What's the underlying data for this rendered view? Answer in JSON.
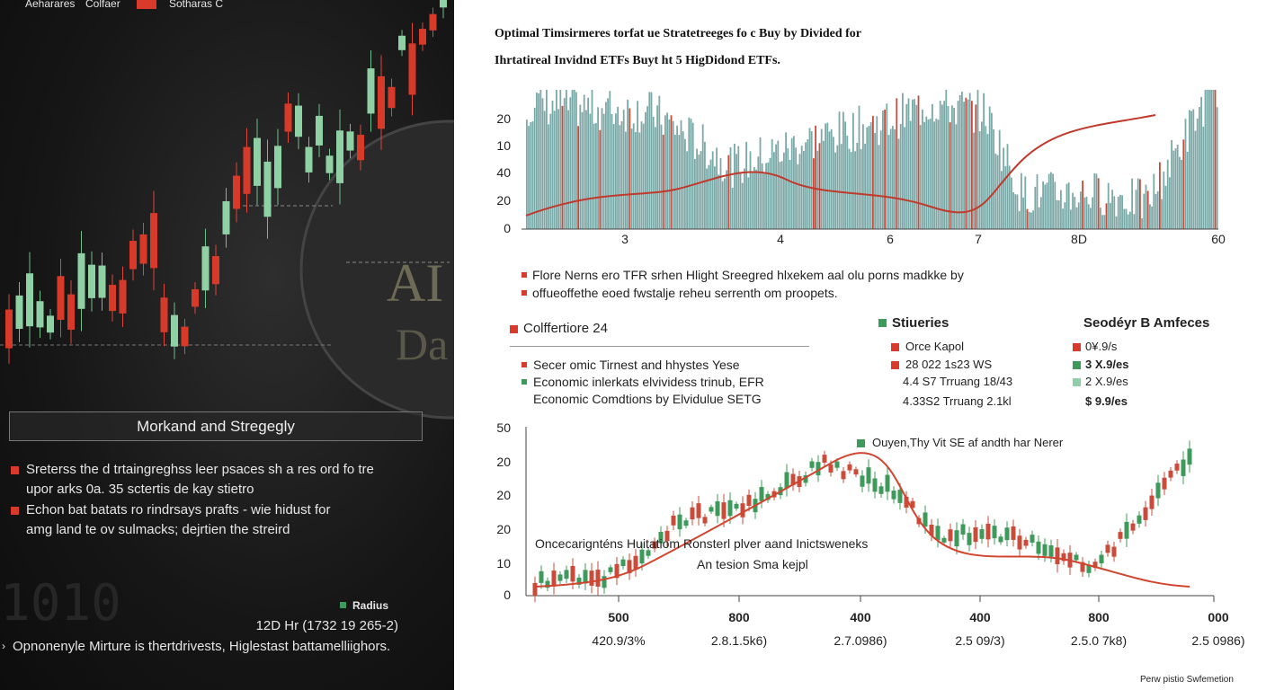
{
  "left_panel": {
    "legend": [
      "Aeharares",
      "Colfaer",
      "Sotharas C"
    ],
    "box_title": "Morkand and Stregegly",
    "bullets": [
      [
        "Sreterss the d trtaingreghss leer psaces sh a res ord fo tre",
        "upor arks 0a. 35 sctertis de kay stietro"
      ],
      [
        "Echon bat batats ro rindrsays prafts - wie hidust for",
        "amg land te ov sulmacks; dejrtien the streird"
      ]
    ],
    "radius_label": "Radius",
    "radius_value": "12D Hr (1732 19 265-2)",
    "footer": "Opnonenyle Mirture is thertdrivests, Higlestast battamelliighors."
  },
  "right_panel": {
    "title": [
      "Optimal Timsirmeres torfat ue Stratetreeges fo c Buy by Divided for",
      "Ihrtatireal Invidnd ETFs Buyt ht 5 HigDidond ETFs."
    ],
    "top_chart": {
      "y_labels": [
        "20",
        "10",
        "40",
        "20",
        "0"
      ],
      "x_labels": [
        "3",
        "4",
        "6",
        "7",
        "8D",
        "60"
      ]
    },
    "notes": [
      "Flore Nerns ero TFR srhen Hlight Sreegred hlxekem aal olu porns madkke by",
      "offueoffethe eoed fwstalje reheu serrenth om proopets."
    ],
    "section": {
      "title": "Colffertiore 24",
      "items": [
        "Secer omic Tirnest and hhystes Yese",
        "Economic inlerkats elvividess trinub, EFR",
        "Economic Comdtions by Elvidulue SETG"
      ]
    },
    "table": {
      "headers": [
        "Stiueries",
        "Seodéyr B Amfeces"
      ],
      "rows": [
        [
          "Orce Kapol",
          "0¥.9/s"
        ],
        [
          "28 022 1s23 WS",
          "3 X.9/es"
        ],
        [
          "4.4 S7 Trruang 18/43",
          "2 X.9/es"
        ],
        [
          "4.33S2 Trruang 2.1kl",
          "$ 9.9/es"
        ]
      ]
    },
    "bottom_chart": {
      "y_labels": [
        "50",
        "20",
        "20",
        "20",
        "10",
        "0"
      ],
      "legend": "Ouyen,Thy Vit SE af andth har Nerer",
      "annotation": [
        "Oncecarignténs Huitatiom Ronsterl plver aand Inictsweneks",
        "An tesion Sma kejpl"
      ],
      "x_labels": [
        "500",
        "800",
        "400",
        "400",
        "800",
        "000"
      ],
      "x_sublabels": [
        "420.9/3%",
        "2.8.1.5k6)",
        "2.7.0986)",
        "2.5 09/3)",
        "2.5.0 7k8)",
        "2.5 0986)"
      ]
    },
    "footer": "Perw pistio Swfemetion"
  }
}
